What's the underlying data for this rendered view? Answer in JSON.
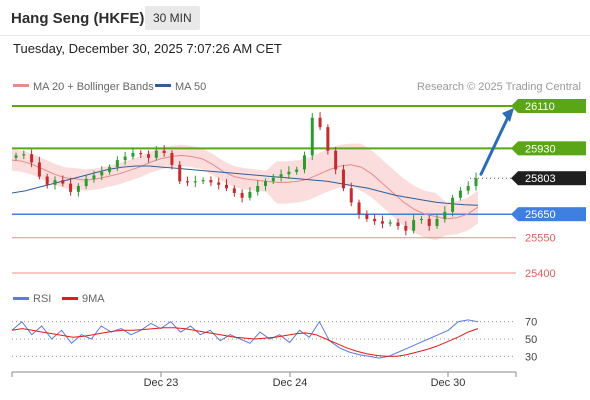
{
  "header": {
    "title": "Hang Seng (HKFE)",
    "timeframe": "30 MIN"
  },
  "datetime": "Tuesday, December 30, 2025 7:07:26 AM CET",
  "legend": {
    "ma20": "MA 20 + Bollinger Bands",
    "ma50": "MA 50",
    "copyright": "Research © 2025 Trading Central",
    "rsi": "RSI",
    "rsi_ma": "9MA"
  },
  "colors": {
    "resistance": "#5aa617",
    "support": "#3f7fe0",
    "support_faint": "#f08a8a",
    "last_price_bg": "#1f1f1f",
    "ma20": "#e88b8b",
    "ma50": "#2f5e98",
    "bollinger_fill": "#fbd9d9",
    "rsi": "#5b7be0",
    "rsi_ma": "#e11a1a",
    "candle_up": "#2e9a2e",
    "candle_down": "#c82a2a",
    "arrow": "#2a6db5"
  },
  "chart_data": {
    "type": "candlestick",
    "title": "Hang Seng (HKFE)",
    "timeframe": "30 MIN",
    "x_tick_labels": [
      "Dec 23",
      "Dec 24",
      "Dec 30"
    ],
    "y_range": [
      25365,
      26125
    ],
    "levels": [
      {
        "label": "26110",
        "value": 26110,
        "kind": "resistance"
      },
      {
        "label": "25930",
        "value": 25930,
        "kind": "resistance"
      },
      {
        "label": "25803",
        "value": 25803,
        "kind": "last"
      },
      {
        "label": "25650",
        "value": 25650,
        "kind": "support"
      },
      {
        "label": "25550",
        "value": 25550,
        "kind": "support-faint"
      },
      {
        "label": "25400",
        "value": 25400,
        "kind": "support-faint"
      }
    ],
    "series_close": [
      25900,
      25905,
      25870,
      25810,
      25775,
      25795,
      25780,
      25745,
      25770,
      25800,
      25815,
      25830,
      25850,
      25880,
      25895,
      25910,
      25905,
      25890,
      25920,
      25910,
      25860,
      25790,
      25785,
      25790,
      25795,
      25785,
      25775,
      25760,
      25740,
      25720,
      25745,
      25770,
      25790,
      25805,
      25820,
      25830,
      25840,
      25900,
      26060,
      26020,
      25920,
      25840,
      25760,
      25700,
      25650,
      25630,
      25620,
      25610,
      25615,
      25600,
      25580,
      25625,
      25630,
      25600,
      25630,
      25660,
      25720,
      25750,
      25770,
      25803
    ],
    "ma20": [
      25880,
      25875,
      25860,
      25840,
      25820,
      25805,
      25800,
      25795,
      25800,
      25810,
      25820,
      25835,
      25850,
      25870,
      25885,
      25895,
      25900,
      25895,
      25885,
      25860,
      25830,
      25810,
      25800,
      25795,
      25790,
      25785,
      25785,
      25790,
      25800,
      25820,
      25840,
      25855,
      25860,
      25850,
      25820,
      25780,
      25740,
      25700,
      25670,
      25650,
      25640,
      25630,
      25635,
      25650,
      25680
    ],
    "ma50": [
      25740,
      25750,
      25765,
      25780,
      25795,
      25810,
      25825,
      25840,
      25850,
      25855,
      25855,
      25850,
      25845,
      25840,
      25835,
      25830,
      25825,
      25820,
      25815,
      25810,
      25805,
      25800,
      25795,
      25790,
      25780,
      25770,
      25760,
      25745,
      25730,
      25720,
      25710,
      25700,
      25695,
      25690,
      25688
    ],
    "rsi": {
      "levels": [
        70,
        50,
        30
      ],
      "range": [
        20,
        80
      ],
      "rsi_values": [
        60,
        70,
        55,
        65,
        50,
        60,
        45,
        55,
        50,
        65,
        58,
        62,
        55,
        60,
        68,
        62,
        70,
        58,
        65,
        55,
        60,
        48,
        55,
        50,
        45,
        58,
        50,
        55,
        46,
        60,
        52,
        70,
        48,
        40,
        35,
        32,
        30,
        28,
        30,
        35,
        40,
        45,
        50,
        55,
        60,
        70,
        72,
        70
      ],
      "ma_values": [
        60,
        62,
        60,
        58,
        56,
        54,
        52,
        53,
        55,
        57,
        59,
        60,
        60,
        61,
        62,
        63,
        63,
        62,
        60,
        58,
        56,
        54,
        52,
        51,
        50,
        51,
        52,
        54,
        56,
        57,
        55,
        50,
        45,
        40,
        36,
        33,
        31,
        30,
        30,
        32,
        35,
        38,
        42,
        47,
        52,
        58,
        62
      ]
    }
  }
}
